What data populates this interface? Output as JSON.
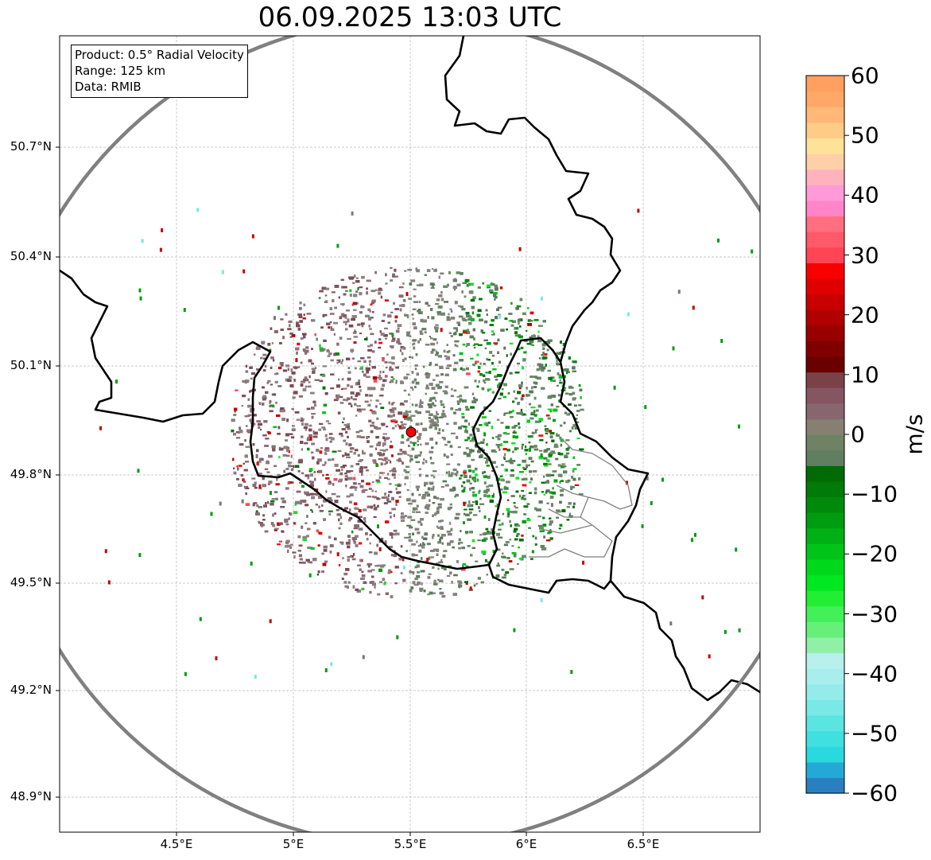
{
  "title": "06.09.2025 13:03 UTC",
  "info": {
    "product": "Product: 0.5° Radial Velocity",
    "range": "Range: 125 km",
    "data": "Data: RMIB"
  },
  "lat_labels": [
    "50.7°N",
    "50.4°N",
    "50.1°N",
    "49.8°N",
    "49.5°N",
    "49.2°N",
    "48.9°N"
  ],
  "lon_labels": [
    "4.5°E",
    "5°E",
    "5.5°E",
    "6°E",
    "6.5°E"
  ],
  "colorbar": {
    "unit": "m/s",
    "min": -60,
    "max": 60,
    "tick_labels": [
      "60",
      "50",
      "40",
      "30",
      "20",
      "10",
      "0",
      "−10",
      "−20",
      "−30",
      "−40",
      "−50",
      "−60"
    ],
    "colors": [
      "#2b7fc0",
      "#23a9d6",
      "#2ad9de",
      "#40e0e0",
      "#5ae5e2",
      "#7ae8e6",
      "#94ecea",
      "#a8eeec",
      "#b8f0ee",
      "#90f0a8",
      "#66f07a",
      "#44f05a",
      "#22ee33",
      "#00e820",
      "#00d81c",
      "#00c418",
      "#00b014",
      "#009c10",
      "#008a0c",
      "#007a08",
      "#006a04",
      "#607f60",
      "#6f8264",
      "#858072",
      "#876670",
      "#855662",
      "#7a4248",
      "#6a0000",
      "#800000",
      "#980000",
      "#b00000",
      "#c80000",
      "#e00000",
      "#f80000",
      "#ff4455",
      "#ff5a6a",
      "#ff6f80",
      "#ff85c8",
      "#ff9ad8",
      "#ffb2bc",
      "#ffd0a8",
      "#ffe29a",
      "#ffcc88",
      "#ffb878",
      "#ffa868",
      "#ffa060"
    ],
    "colors_ascending": true
  },
  "radar": {
    "site": {
      "lon": 5.505,
      "lat": 49.914
    },
    "range_km": 125,
    "range_ring_color": "#808080",
    "site_color": "#ff0000"
  },
  "map_extent": {
    "lon": [
      4.0,
      7.0
    ],
    "lat": [
      48.8,
      50.8
    ]
  }
}
